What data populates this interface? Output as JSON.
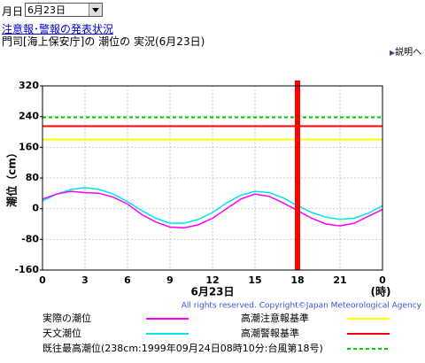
{
  "header": {
    "date_label": "月日",
    "date_select": "6月23日",
    "link": "注意報･警報の発表状況",
    "subtitle": "門司[海上保安庁]の 潮位の 実況(6月23日)",
    "help_link": "説明へ"
  },
  "chart_data": {
    "type": "line",
    "y_label": "潮位（cm）",
    "x_label": "6月23日",
    "x_unit": "(時)",
    "credit": "All rights reserved. Copyright©Japan Meteorological Agency",
    "x": [
      0,
      1,
      2,
      3,
      4,
      5,
      6,
      7,
      8,
      9,
      10,
      11,
      12,
      13,
      14,
      15,
      16,
      17,
      18,
      19,
      20,
      21,
      22,
      23,
      24
    ],
    "xlim": [
      0,
      24
    ],
    "xticks": [
      0,
      3,
      6,
      9,
      12,
      15,
      18,
      21,
      {
        "value": 24,
        "label": "0"
      }
    ],
    "ylim": [
      -160,
      320
    ],
    "yticks": [
      320,
      240,
      160,
      80,
      0,
      -80,
      -160
    ],
    "grid": true,
    "series": [
      {
        "name": "実際の潮位",
        "color": "#ff00ff",
        "values": [
          25,
          38,
          45,
          42,
          40,
          30,
          12,
          -15,
          -35,
          -48,
          -50,
          -42,
          -25,
          0,
          25,
          38,
          32,
          15,
          -5,
          -25,
          -40,
          -45,
          -38,
          -20,
          -2
        ]
      },
      {
        "name": "天文潮位",
        "color": "#00e5e5",
        "values": [
          20,
          38,
          50,
          55,
          50,
          38,
          18,
          -5,
          -25,
          -38,
          -38,
          -28,
          -10,
          15,
          35,
          45,
          42,
          28,
          8,
          -10,
          -22,
          -28,
          -25,
          -12,
          8
        ]
      }
    ],
    "reference_lines": [
      {
        "name": "高潮注意報基準",
        "color": "#ffff00",
        "value": 180,
        "dashed": false
      },
      {
        "name": "高潮警報基準",
        "color": "#ff0000",
        "value": 215,
        "dashed": false
      },
      {
        "name": "既往最高潮位(238cm:1999年09月24日08時10分:台風第18号)",
        "color": "#00cc00",
        "value": 238,
        "dashed": true
      }
    ],
    "current_time": 18,
    "current_color": "#ff0000"
  }
}
